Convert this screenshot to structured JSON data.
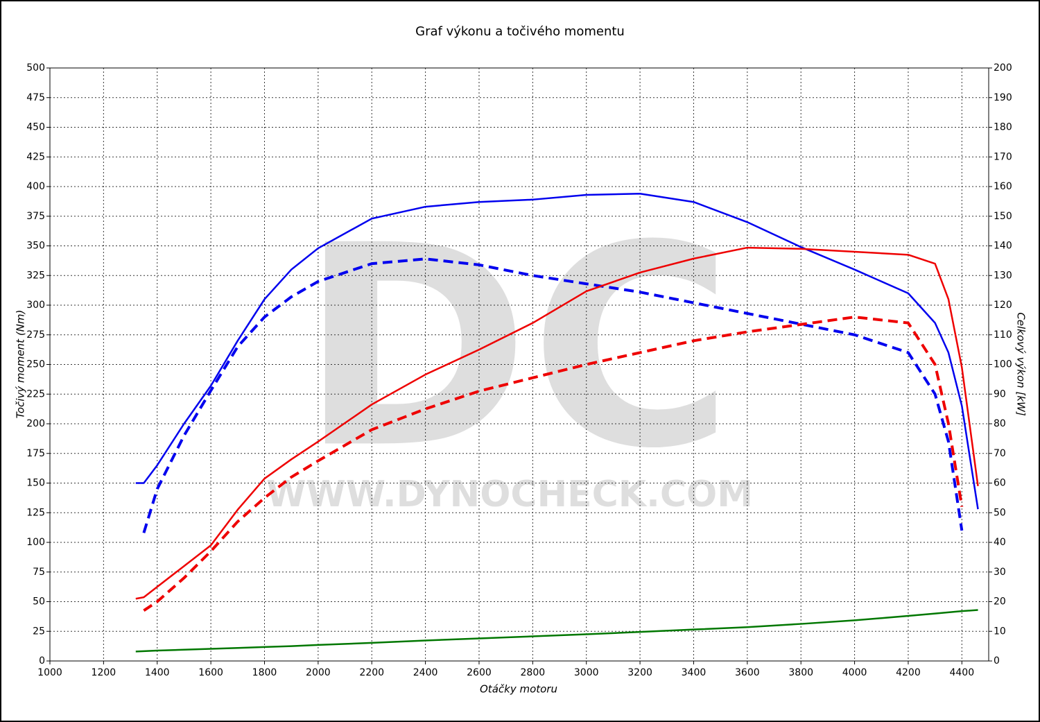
{
  "chart_data": {
    "type": "line",
    "title": "Graf výkonu a točivého momentu",
    "xlabel": "Otáčky motoru",
    "ylabel": "Točivý moment (Nm)",
    "y2label": "Celkový výkon [kW]",
    "watermark_logo": "DC",
    "watermark_url": "WWW.DYNOCHECK.COM",
    "grid": true,
    "x": [
      1320,
      1350,
      1400,
      1500,
      1600,
      1700,
      1800,
      1900,
      2000,
      2200,
      2400,
      2600,
      2800,
      3000,
      3200,
      3400,
      3600,
      3800,
      4000,
      4200,
      4300,
      4350,
      4400,
      4460
    ],
    "xlim": [
      1000,
      4500
    ],
    "xticks": [
      1000,
      1200,
      1400,
      1600,
      1800,
      2000,
      2200,
      2400,
      2600,
      2800,
      3000,
      3200,
      3400,
      3600,
      3800,
      4000,
      4200,
      4400
    ],
    "ylim": [
      0,
      500
    ],
    "yticks": [
      0,
      25,
      50,
      75,
      100,
      125,
      150,
      175,
      200,
      225,
      250,
      275,
      300,
      325,
      350,
      375,
      400,
      425,
      450,
      475,
      500
    ],
    "y2lim": [
      0,
      200
    ],
    "y2ticks": [
      0,
      10,
      20,
      30,
      40,
      50,
      60,
      70,
      80,
      90,
      100,
      110,
      120,
      130,
      140,
      150,
      160,
      170,
      180,
      190,
      200
    ],
    "series": [
      {
        "color": "#0000ee",
        "dashed": false,
        "axis": "y",
        "values": [
          150,
          150,
          165,
          200,
          232,
          270,
          305,
          330,
          348,
          373,
          383,
          387,
          389,
          393,
          394,
          387,
          370,
          349,
          330,
          310,
          285,
          260,
          215,
          128
        ]
      },
      {
        "color": "#0000ee",
        "dashed": true,
        "axis": "y",
        "values": [
          null,
          108,
          145,
          190,
          228,
          265,
          290,
          307,
          320,
          335,
          339,
          334,
          325,
          318,
          311,
          302,
          293,
          284,
          275,
          260,
          225,
          185,
          110,
          null
        ]
      },
      {
        "color": "#ee0000",
        "dashed": false,
        "axis": "y2",
        "values": [
          21,
          21.5,
          25,
          32,
          39,
          51,
          61.5,
          68,
          74,
          86.5,
          96.6,
          105,
          114,
          124.7,
          131,
          135.7,
          139.4,
          139,
          138,
          137,
          134,
          122,
          99,
          59
        ]
      },
      {
        "color": "#ee0000",
        "dashed": true,
        "axis": "y2",
        "values": [
          null,
          17,
          20,
          28,
          37,
          47,
          55,
          62,
          67.5,
          78,
          85,
          91,
          95.5,
          100,
          104,
          108,
          111,
          113.5,
          116,
          114,
          100,
          80,
          52,
          null
        ]
      },
      {
        "color": "#007700",
        "dashed": false,
        "axis": "y2",
        "values": [
          3.2,
          3.3,
          3.5,
          3.8,
          4.1,
          4.4,
          4.7,
          5.0,
          5.4,
          6.1,
          6.9,
          7.6,
          8.3,
          9.0,
          9.8,
          10.6,
          11.4,
          12.5,
          13.7,
          15.2,
          16.0,
          16.4,
          16.8,
          17.2
        ]
      }
    ]
  }
}
